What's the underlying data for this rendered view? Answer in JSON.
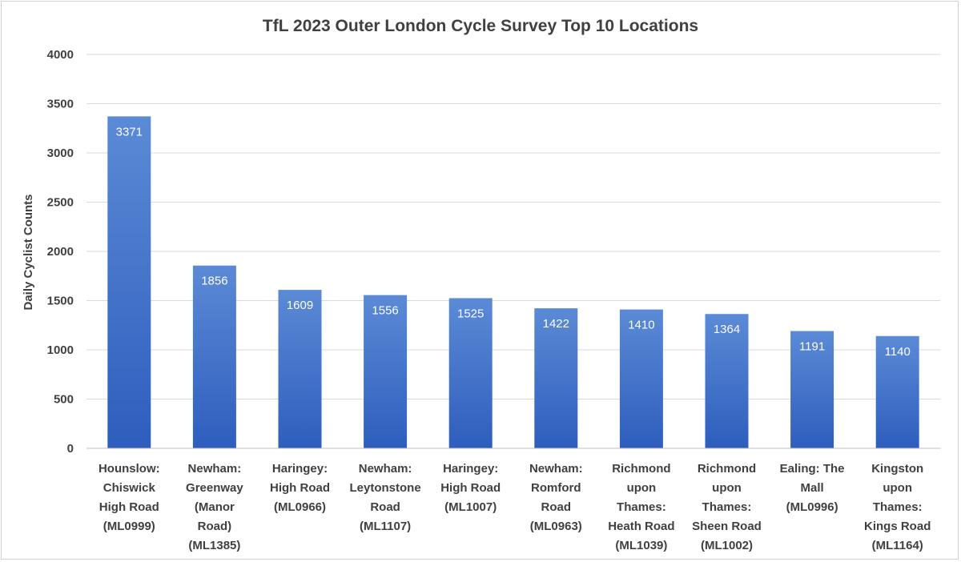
{
  "chart_data": {
    "type": "bar",
    "title": "TfL 2023 Outer London Cycle Survey Top 10 Locations",
    "xlabel": "",
    "ylabel": "Daily Cyclist Counts",
    "ylim": [
      0,
      4000
    ],
    "yticks": [
      0,
      500,
      1000,
      1500,
      2000,
      2500,
      3000,
      3500,
      4000
    ],
    "grid": true,
    "legend": "none",
    "bar_color": "#4472C4",
    "bar_gradient": [
      "#5B8AD6",
      "#2E5EBD"
    ],
    "categories": [
      [
        "Hounslow:",
        "Chiswick",
        "High Road",
        "(ML0999)"
      ],
      [
        "Newham:",
        "Greenway",
        "(Manor",
        "Road)",
        "(ML1385)"
      ],
      [
        "Haringey:",
        "High Road",
        "(ML0966)"
      ],
      [
        "Newham:",
        "Leytonstone",
        "Road",
        "(ML1107)"
      ],
      [
        "Haringey:",
        "High Road",
        "(ML1007)"
      ],
      [
        "Newham:",
        "Romford",
        "Road",
        "(ML0963)"
      ],
      [
        "Richmond",
        "upon",
        "Thames:",
        "Heath Road",
        "(ML1039)"
      ],
      [
        "Richmond",
        "upon",
        "Thames:",
        "Sheen Road",
        "(ML1002)"
      ],
      [
        "Ealing: The",
        "Mall",
        "(ML0996)"
      ],
      [
        "Kingston",
        "upon",
        "Thames:",
        "Kings Road",
        "(ML1164)"
      ]
    ],
    "values": [
      3371,
      1856,
      1609,
      1556,
      1525,
      1422,
      1410,
      1364,
      1191,
      1140
    ]
  }
}
